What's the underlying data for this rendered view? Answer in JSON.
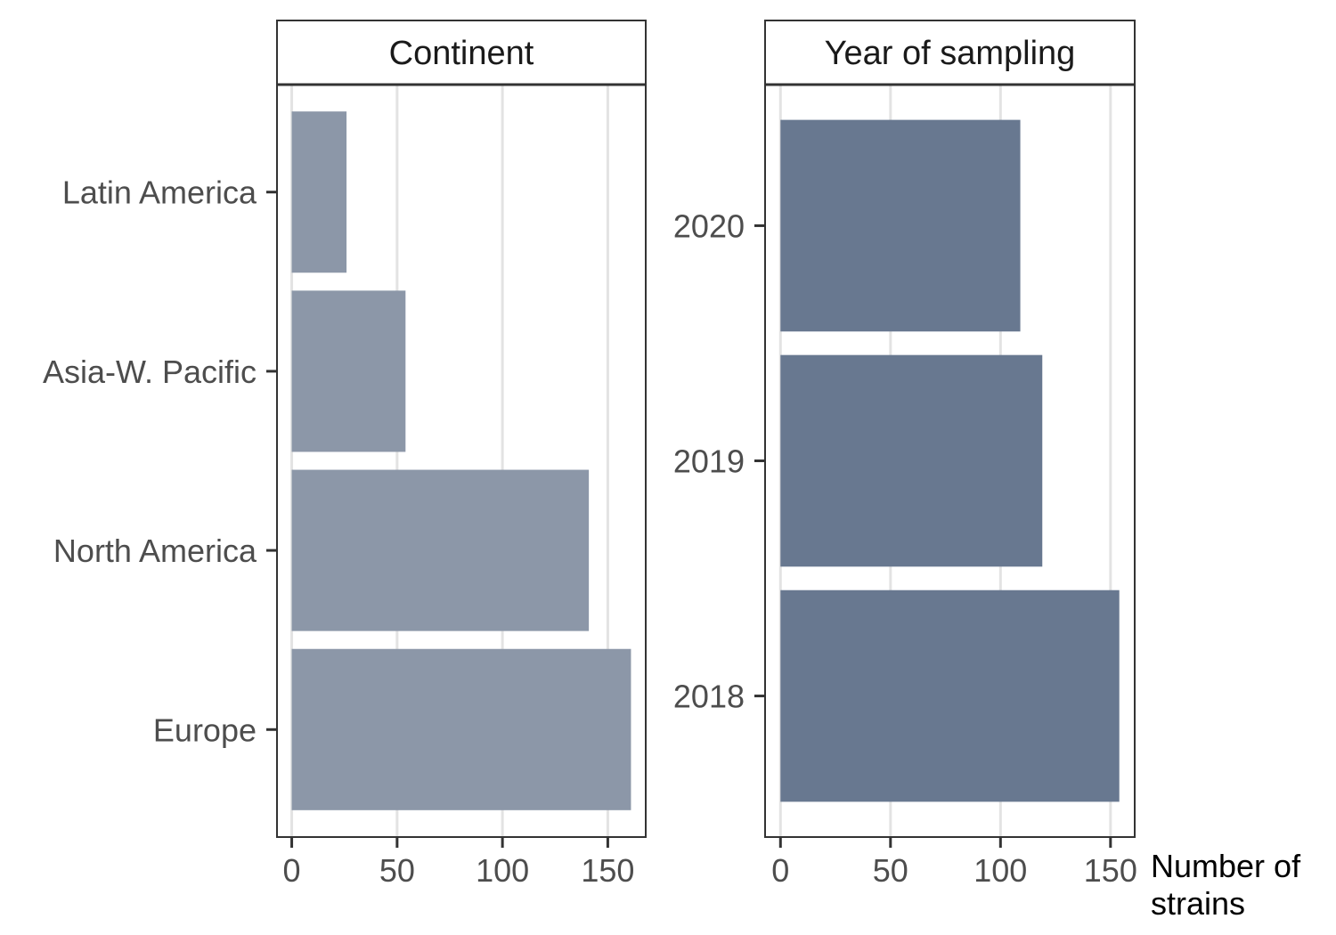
{
  "chart_data": [
    {
      "type": "bar",
      "orientation": "horizontal",
      "title": "Continent",
      "categories": [
        "Europe",
        "North America",
        "Asia-W. Pacific",
        "Latin America"
      ],
      "values": [
        161,
        141,
        54,
        26
      ],
      "xlim": [
        -7,
        168
      ],
      "xticks": [
        0,
        50,
        100,
        150
      ],
      "xtick_labels": [
        "0",
        "50",
        "100",
        "150"
      ],
      "bar_color": "#8c97a8",
      "grid": "vertical"
    },
    {
      "type": "bar",
      "orientation": "horizontal",
      "title": "Year of sampling",
      "categories": [
        "2018",
        "2019",
        "2020"
      ],
      "values": [
        154,
        119,
        109
      ],
      "xlim": [
        -7,
        161
      ],
      "xticks": [
        0,
        50,
        100,
        150
      ],
      "xtick_labels": [
        "0",
        "50",
        "100",
        "150"
      ],
      "bar_color": "#687890",
      "grid": "vertical"
    }
  ],
  "xlabel_line1": "Number of",
  "xlabel_line2": "strains"
}
